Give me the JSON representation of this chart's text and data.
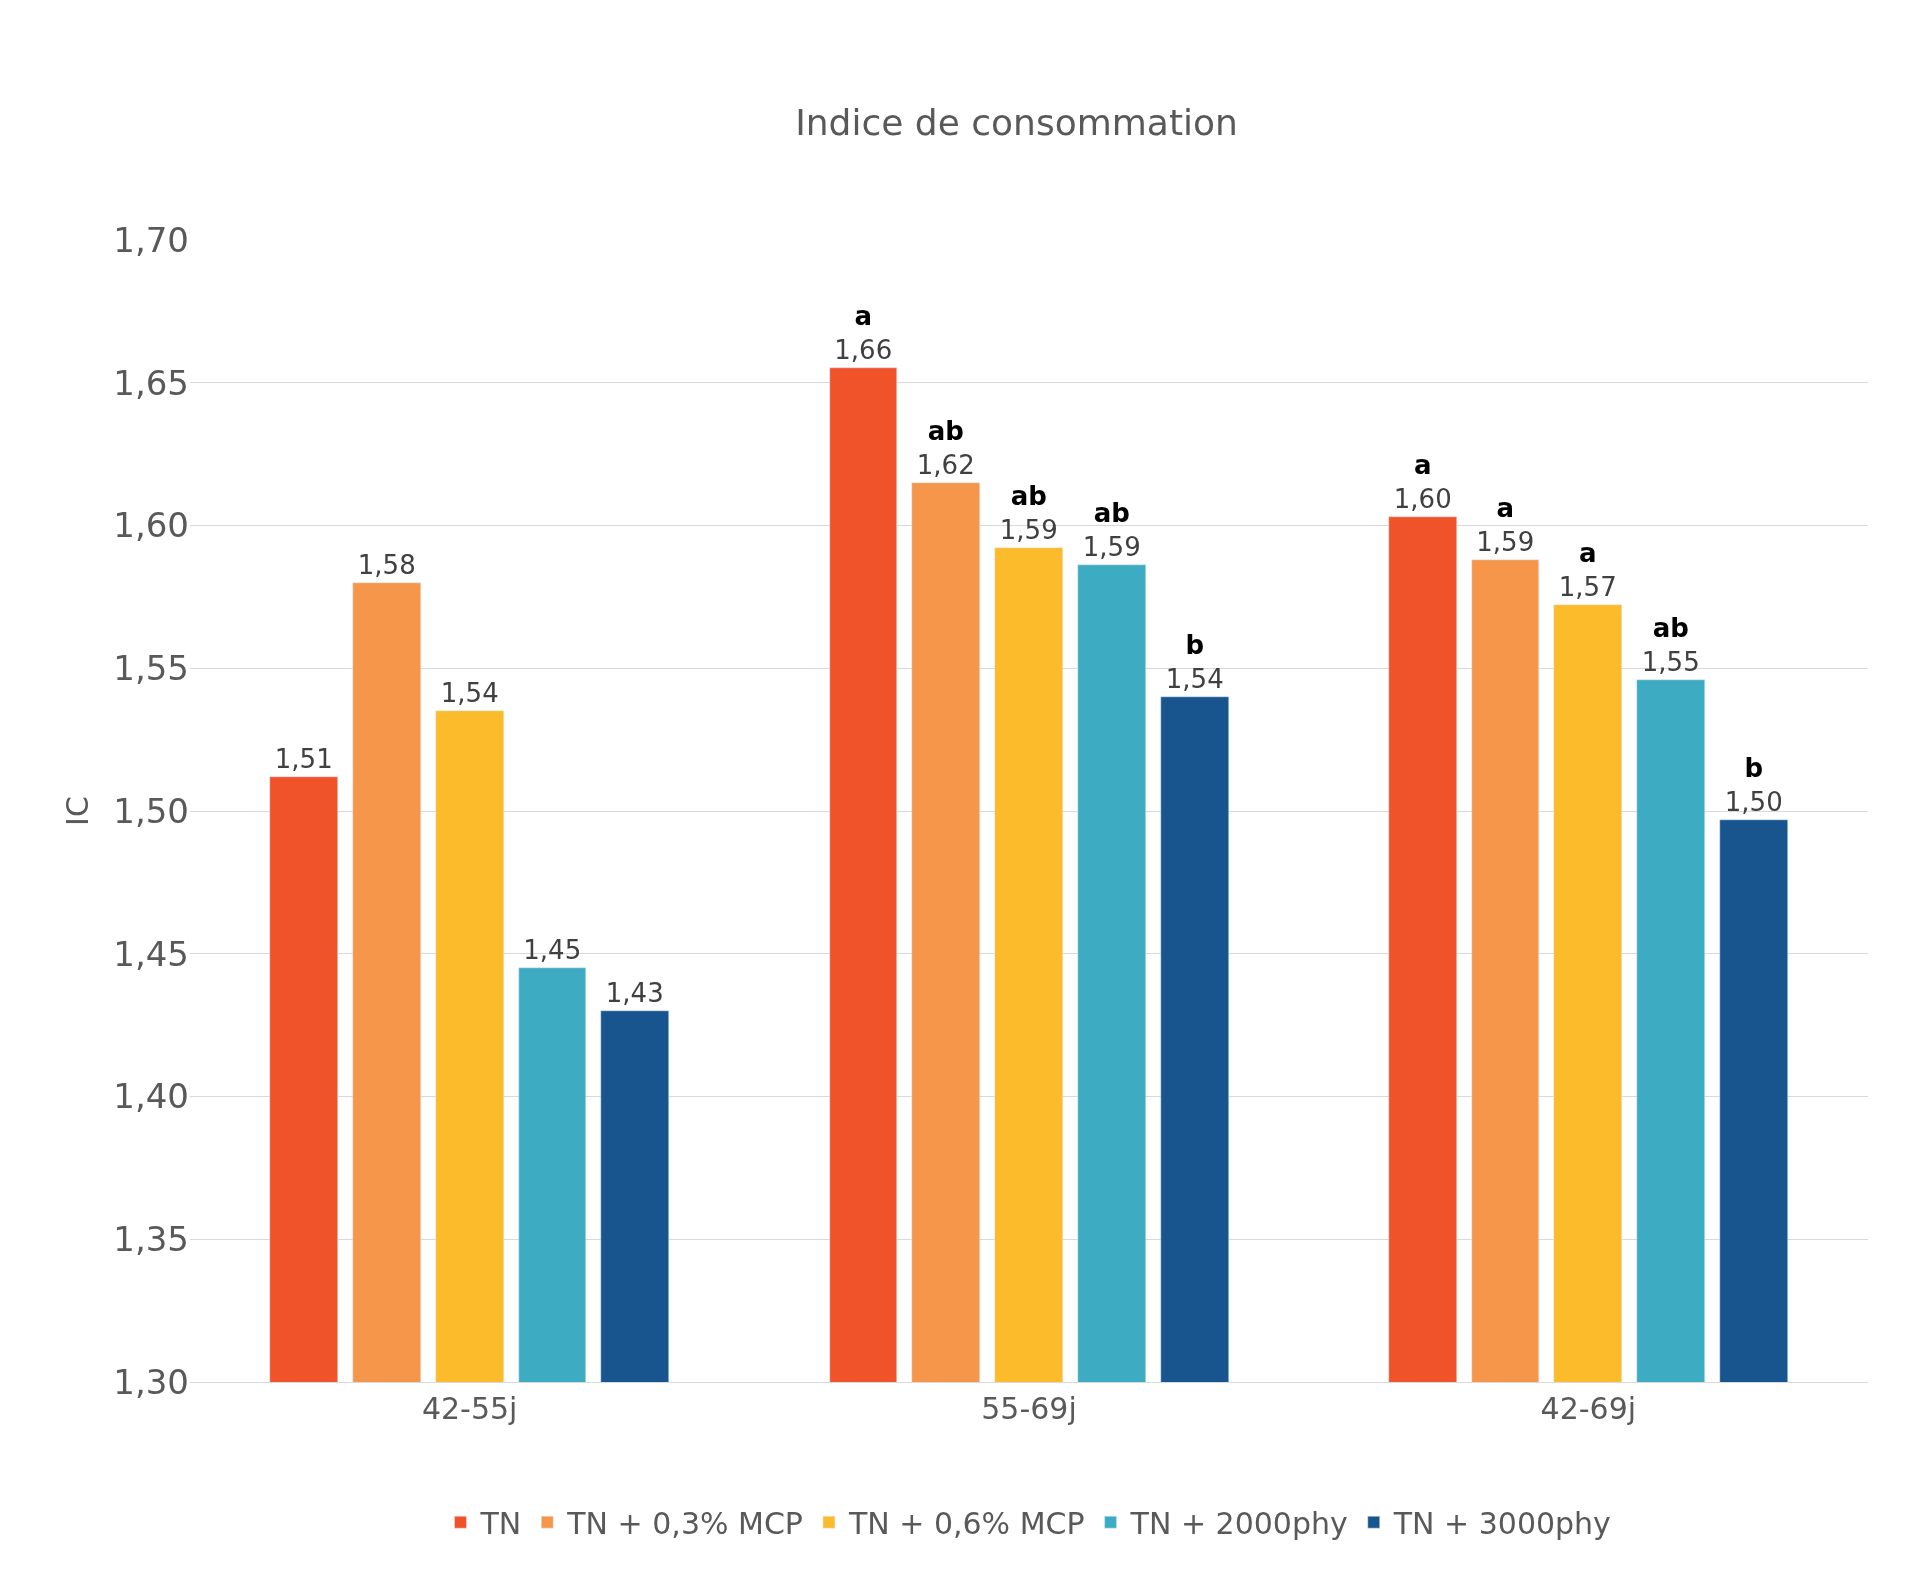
{
  "chart_data": {
    "type": "bar",
    "title": "Indice de consommation",
    "ylabel": "IC",
    "categories": [
      "42-55j",
      "55-69j",
      "42-69j"
    ],
    "series": [
      {
        "name": "TN",
        "color": "#f0522a",
        "values": [
          1.512,
          1.655,
          1.603
        ],
        "value_labels": [
          "1,51",
          "a\n1,66",
          "a\n1,60"
        ]
      },
      {
        "name": "TN + 0,3% MCP",
        "color": "#f5964b",
        "values": [
          1.58,
          1.615,
          1.588
        ],
        "value_labels": [
          "1,58",
          "ab\n1,62",
          "a\n1,59"
        ]
      },
      {
        "name": "TN + 0,6% MCP",
        "color": "#fbbb2a",
        "values": [
          1.535,
          1.592,
          1.572
        ],
        "value_labels": [
          "1,54",
          "ab\n1,59",
          "a\n1,57"
        ]
      },
      {
        "name": "TN + 2000phy",
        "color": "#3dacc3",
        "values": [
          1.445,
          1.586,
          1.546
        ],
        "value_labels": [
          "1,45",
          "ab\n1,59",
          "ab\n1,55"
        ]
      },
      {
        "name": "TN + 3000phy",
        "color": "#18558e",
        "values": [
          1.43,
          1.54,
          1.497
        ],
        "value_labels": [
          "1,43",
          "b\n1,54",
          "b\n1,50"
        ]
      }
    ],
    "ylim": [
      1.3,
      1.7
    ],
    "yticks": [
      {
        "value": 1.3,
        "label": "1,30"
      },
      {
        "value": 1.35,
        "label": "1,35"
      },
      {
        "value": 1.4,
        "label": "1,40"
      },
      {
        "value": 1.45,
        "label": "1,45"
      },
      {
        "value": 1.5,
        "label": "1,50"
      },
      {
        "value": 1.55,
        "label": "1,55"
      },
      {
        "value": 1.6,
        "label": "1,60"
      },
      {
        "value": 1.65,
        "label": "1,65"
      },
      {
        "value": 1.7,
        "label": "1,70"
      }
    ],
    "grid": "y",
    "legend": "bottom"
  }
}
